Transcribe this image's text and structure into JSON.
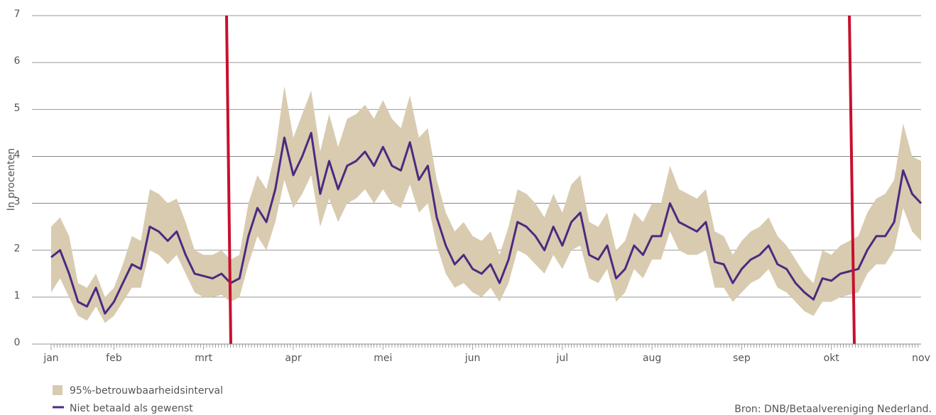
{
  "chart_data": {
    "type": "line",
    "y_label": "In procenten",
    "source": "Bron: DNB/Betaalvereniging Nederland.",
    "categories": [
      "jan",
      null,
      null,
      null,
      null,
      null,
      null,
      "feb",
      null,
      null,
      null,
      null,
      null,
      null,
      null,
      null,
      null,
      "mrt",
      null,
      null,
      null,
      null,
      null,
      null,
      null,
      null,
      null,
      "apr",
      null,
      null,
      null,
      null,
      null,
      null,
      null,
      null,
      null,
      "mei",
      null,
      null,
      null,
      null,
      null,
      null,
      null,
      null,
      null,
      "jun",
      null,
      null,
      null,
      null,
      null,
      null,
      null,
      null,
      null,
      "jul",
      null,
      null,
      null,
      null,
      null,
      null,
      null,
      null,
      null,
      "aug",
      null,
      null,
      null,
      null,
      null,
      null,
      null,
      null,
      null,
      "sep",
      null,
      null,
      null,
      null,
      null,
      null,
      null,
      null,
      null,
      "okt",
      null,
      null,
      null,
      null,
      null,
      null,
      null,
      null,
      null,
      "nov"
    ],
    "band": {
      "name": "95%-betrouwbaarheidsinterval",
      "color": "#d8cbb0",
      "lower": [
        1.1,
        1.4,
        1.0,
        0.6,
        0.5,
        0.8,
        0.45,
        0.6,
        0.9,
        1.2,
        1.2,
        2.0,
        1.9,
        1.7,
        1.9,
        1.5,
        1.1,
        1.0,
        1.0,
        1.05,
        0.9,
        1.0,
        1.7,
        2.3,
        2.0,
        2.6,
        3.5,
        2.9,
        3.2,
        3.6,
        2.5,
        3.1,
        2.6,
        3.0,
        3.1,
        3.3,
        3.0,
        3.3,
        3.0,
        2.9,
        3.4,
        2.8,
        3.0,
        2.1,
        1.5,
        1.2,
        1.3,
        1.1,
        1.0,
        1.2,
        0.9,
        1.3,
        2.0,
        1.9,
        1.7,
        1.5,
        1.9,
        1.6,
        2.0,
        2.1,
        1.4,
        1.3,
        1.6,
        0.9,
        1.1,
        1.6,
        1.4,
        1.8,
        1.8,
        2.4,
        2.0,
        1.9,
        1.9,
        2.0,
        1.2,
        1.2,
        0.9,
        1.1,
        1.3,
        1.4,
        1.6,
        1.2,
        1.1,
        0.9,
        0.7,
        0.6,
        0.9,
        0.9,
        1.0,
        1.05,
        1.1,
        1.5,
        1.7,
        1.7,
        2.0,
        2.9,
        2.4,
        2.2
      ],
      "upper": [
        2.5,
        2.7,
        2.3,
        1.3,
        1.2,
        1.5,
        1.0,
        1.2,
        1.7,
        2.3,
        2.2,
        3.3,
        3.2,
        3.0,
        3.1,
        2.6,
        2.0,
        1.9,
        1.9,
        2.0,
        1.8,
        1.9,
        3.0,
        3.6,
        3.3,
        4.1,
        5.5,
        4.4,
        4.9,
        5.4,
        4.1,
        4.9,
        4.2,
        4.8,
        4.9,
        5.1,
        4.8,
        5.2,
        4.8,
        4.6,
        5.3,
        4.4,
        4.6,
        3.5,
        2.8,
        2.4,
        2.6,
        2.3,
        2.2,
        2.4,
        1.9,
        2.5,
        3.3,
        3.2,
        3.0,
        2.7,
        3.2,
        2.8,
        3.4,
        3.6,
        2.6,
        2.5,
        2.8,
        2.0,
        2.2,
        2.8,
        2.6,
        3.0,
        3.0,
        3.8,
        3.3,
        3.2,
        3.1,
        3.3,
        2.4,
        2.3,
        1.9,
        2.2,
        2.4,
        2.5,
        2.7,
        2.3,
        2.1,
        1.8,
        1.5,
        1.3,
        2.0,
        1.9,
        2.1,
        2.2,
        2.3,
        2.8,
        3.1,
        3.2,
        3.5,
        4.7,
        4.0,
        3.9
      ]
    },
    "series": [
      {
        "name": "Niet betaald als gewenst",
        "color": "#4b2a80",
        "values": [
          1.85,
          2.0,
          1.5,
          0.9,
          0.8,
          1.2,
          0.65,
          0.9,
          1.3,
          1.7,
          1.6,
          2.5,
          2.4,
          2.2,
          2.4,
          1.9,
          1.5,
          1.45,
          1.4,
          1.5,
          1.3,
          1.4,
          2.3,
          2.9,
          2.6,
          3.3,
          4.4,
          3.6,
          4.0,
          4.5,
          3.2,
          3.9,
          3.3,
          3.8,
          3.9,
          4.1,
          3.8,
          4.2,
          3.8,
          3.7,
          4.3,
          3.5,
          3.8,
          2.7,
          2.1,
          1.7,
          1.9,
          1.6,
          1.5,
          1.7,
          1.3,
          1.8,
          2.6,
          2.5,
          2.3,
          2.0,
          2.5,
          2.1,
          2.6,
          2.8,
          1.9,
          1.8,
          2.1,
          1.4,
          1.6,
          2.1,
          1.9,
          2.3,
          2.3,
          3.0,
          2.6,
          2.5,
          2.4,
          2.6,
          1.75,
          1.7,
          1.3,
          1.6,
          1.8,
          1.9,
          2.1,
          1.7,
          1.6,
          1.3,
          1.1,
          0.95,
          1.4,
          1.35,
          1.5,
          1.55,
          1.6,
          2.0,
          2.3,
          2.3,
          2.6,
          3.7,
          3.2,
          3.0
        ]
      }
    ],
    "ylim": [
      0,
      7
    ],
    "yticks": [
      0,
      1,
      2,
      3,
      4,
      5,
      6,
      7
    ],
    "grid": true
  }
}
